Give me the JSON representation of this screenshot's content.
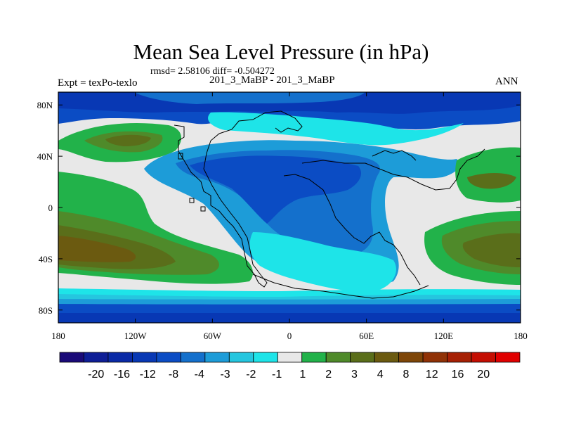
{
  "chart_data": {
    "type": "heatmap",
    "title": "Mean Sea Level Pressure (in hPa)",
    "stats_label": "rmsd= 2.58106 diff= -0.504272",
    "subtitle": "201_3_MaBP - 201_3_MaBP",
    "experiment_label": "Expt = texPo-texlo",
    "season": "ANN",
    "x_ticks": [
      "180",
      "120W",
      "60W",
      "0",
      "60E",
      "120E",
      "180"
    ],
    "y_ticks": [
      "80N",
      "40N",
      "0",
      "40S",
      "80S"
    ],
    "lon_range": [
      -180,
      180
    ],
    "lat_range": [
      -90,
      90
    ],
    "colorbar": {
      "labels": [
        "-20",
        "-16",
        "-12",
        "-8",
        "-4",
        "-3",
        "-2",
        "-1",
        "1",
        "2",
        "3",
        "4",
        "8",
        "12",
        "16",
        "20"
      ],
      "colors": [
        "#1a0a78",
        "#0e1e96",
        "#0a2aa6",
        "#0838b4",
        "#0b4cc4",
        "#1470cc",
        "#1d9cd8",
        "#25c6df",
        "#1ee4e8",
        "#e8e8e8",
        "#22b24a",
        "#4f8a2a",
        "#5a6e1a",
        "#6b5a10",
        "#7e4608",
        "#903206",
        "#a62004",
        "#c40e02",
        "#e00000"
      ]
    }
  }
}
